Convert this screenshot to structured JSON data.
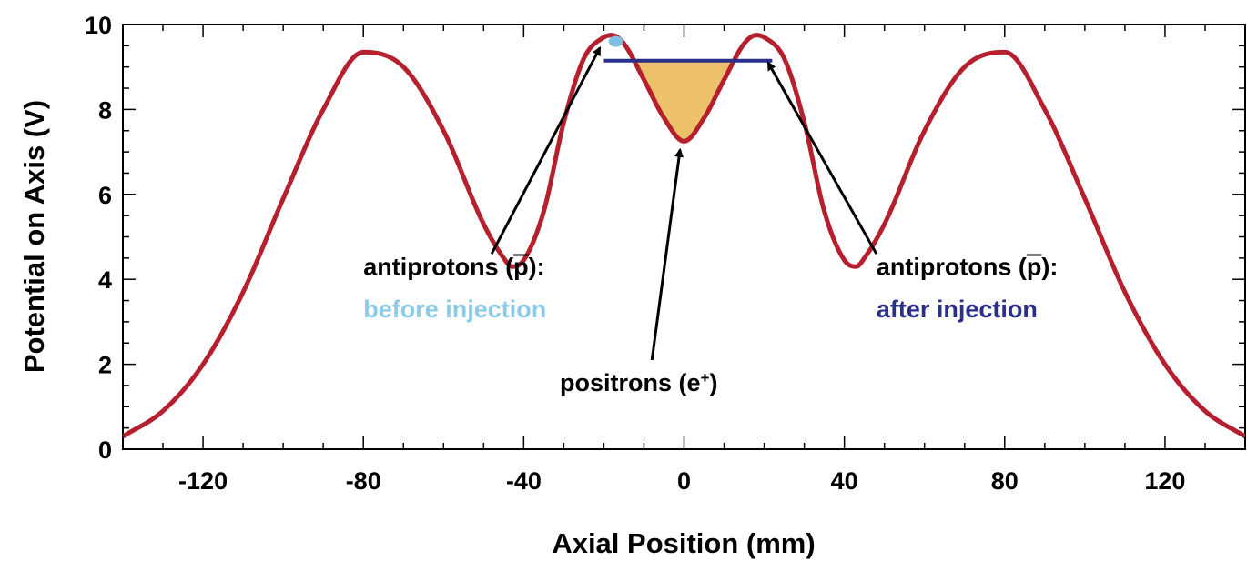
{
  "chart_data": {
    "type": "line",
    "title": "",
    "xlabel": "Axial Position (mm)",
    "ylabel": "Potential on Axis (V)",
    "xlim": [
      -140,
      140
    ],
    "ylim": [
      0,
      10
    ],
    "grid": false,
    "x_ticks": [
      -120,
      -80,
      -40,
      0,
      40,
      80,
      120
    ],
    "x_tick_labels": [
      "-120",
      "-80",
      "-40",
      "0",
      "40",
      "80",
      "120"
    ],
    "y_ticks": [
      0,
      2,
      4,
      6,
      8,
      10
    ],
    "y_tick_labels": [
      "0",
      "2",
      "4",
      "6",
      "8",
      "10"
    ],
    "series": [
      {
        "color": "#b51f2e",
        "x": [
          -140,
          -130,
          -120,
          -110,
          -100,
          -90,
          -80,
          -70,
          -60,
          -50,
          -45,
          -43,
          -40,
          -35,
          -30,
          -25,
          -20,
          -18,
          -15,
          -10,
          -5,
          0,
          5,
          10,
          15,
          18,
          20,
          25,
          30,
          35,
          40,
          43,
          45,
          50,
          60,
          70,
          80,
          90,
          100,
          110,
          120,
          130,
          140
        ],
        "y": [
          0.3,
          0.9,
          2.0,
          3.7,
          5.9,
          8.0,
          9.35,
          9.0,
          7.5,
          5.3,
          4.5,
          4.3,
          4.45,
          5.6,
          7.7,
          9.2,
          9.7,
          9.75,
          9.55,
          8.7,
          7.8,
          7.25,
          7.8,
          8.7,
          9.55,
          9.75,
          9.7,
          9.2,
          7.7,
          5.6,
          4.45,
          4.3,
          4.5,
          5.3,
          7.5,
          9.0,
          9.35,
          8.0,
          5.9,
          3.7,
          2.0,
          0.9,
          0.3
        ]
      }
    ],
    "positron_fill": {
      "x_range": [
        -11,
        11
      ],
      "level": 9.2,
      "color": "#edc06a"
    },
    "antiprotons_before": {
      "x": -17,
      "y": 9.6,
      "color": "#7dbfe0"
    },
    "antiprotons_after": {
      "x_range": [
        -20,
        22
      ],
      "y": 9.15,
      "color": "#2b2f8c"
    },
    "annotations": [
      {
        "key": "ap_before",
        "text_line1": "antiprotons (p):",
        "text_line2": "before injection",
        "line2_color": "#8ccbe8",
        "anchor_x": -48,
        "anchor_y": 4.6,
        "arrow_to": [
          -21,
          9.45
        ]
      },
      {
        "key": "positrons",
        "text": "positrons (e",
        "superscript": "+",
        "text_end": ")",
        "anchor_x": -8,
        "anchor_y": 2.1,
        "arrow_to": [
          -1,
          7.05
        ]
      },
      {
        "key": "ap_after",
        "text_line1": "antiprotons (p):",
        "text_line2": "after injection",
        "line2_color": "#2b2f8c",
        "anchor_x": 48,
        "anchor_y": 4.6,
        "arrow_to": [
          21,
          9.1
        ]
      }
    ]
  }
}
